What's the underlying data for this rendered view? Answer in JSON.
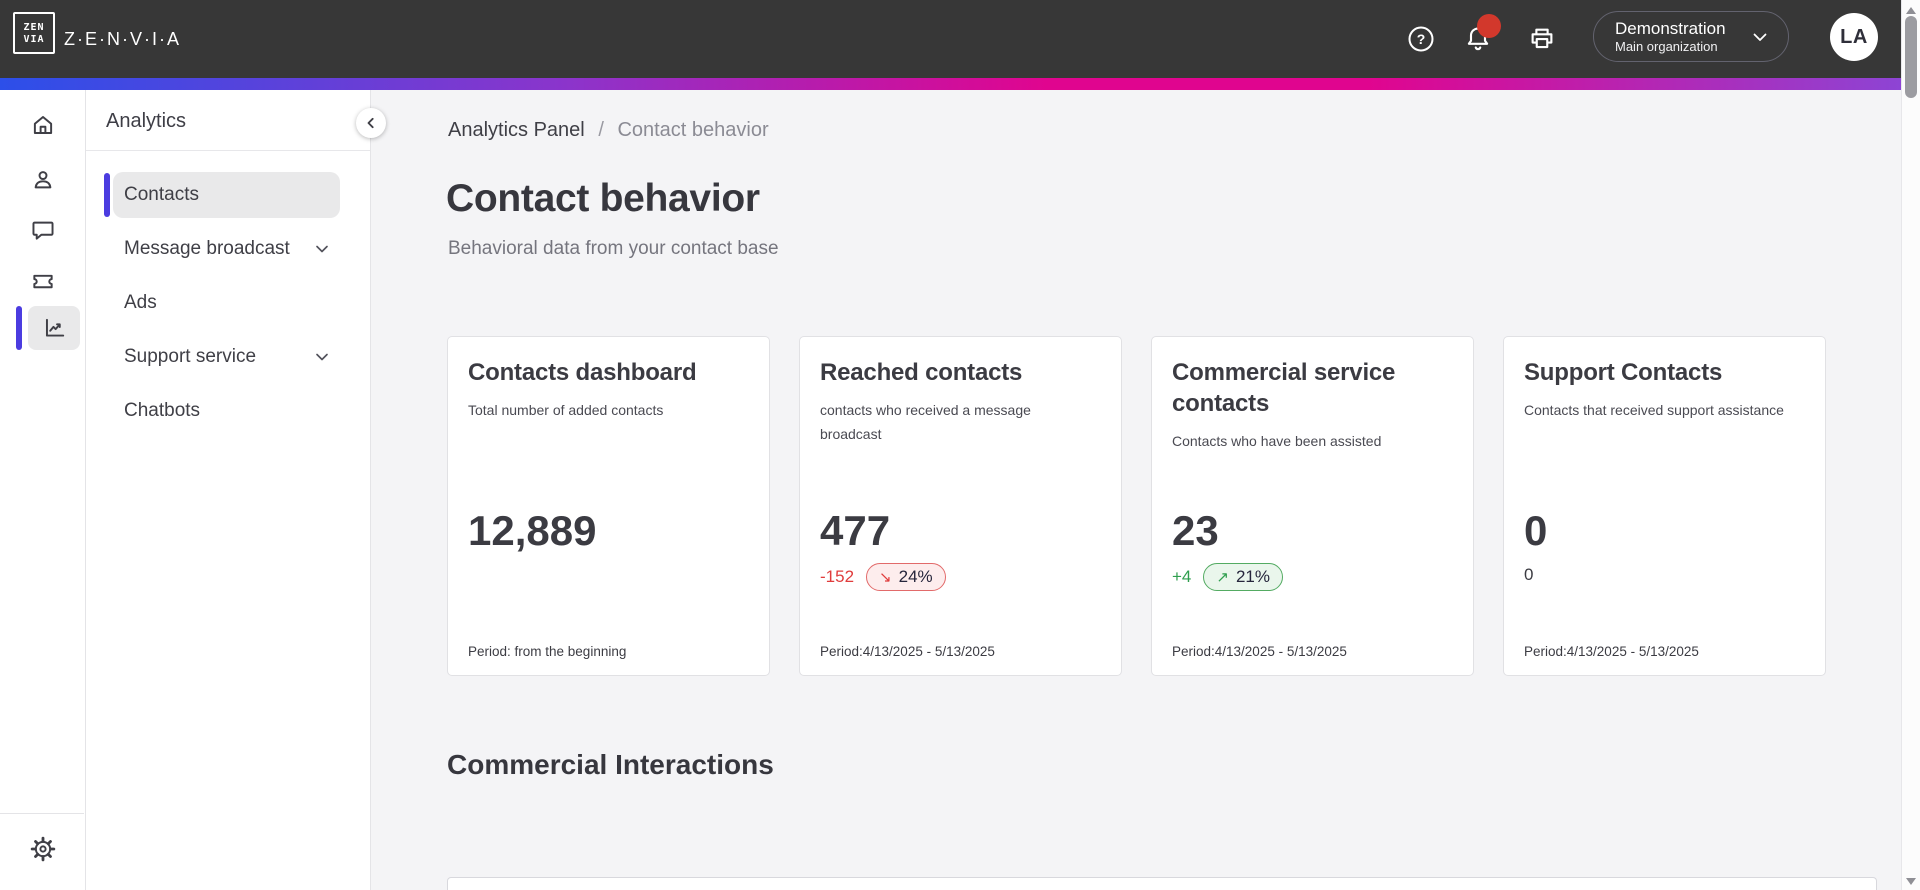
{
  "topbar": {
    "logo_text_top": "ZEN",
    "logo_text_bottom": "VIA",
    "brand": "Z·E·N·V·I·A",
    "icons": [
      "help-icon",
      "notifications-icon",
      "print-icon"
    ],
    "notification_badge": true,
    "org_switcher": {
      "name": "Demonstration",
      "description": "Main organization"
    },
    "avatar_initials": "LA"
  },
  "nav_rail": {
    "items": [
      {
        "icon": "home-icon",
        "active": false
      },
      {
        "icon": "contacts-icon",
        "active": false
      },
      {
        "icon": "conversations-icon",
        "active": false
      },
      {
        "icon": "tickets-icon",
        "active": false
      },
      {
        "icon": "analytics-icon",
        "active": true
      }
    ],
    "bottom_items": [
      {
        "icon": "settings-icon",
        "active": false
      }
    ]
  },
  "sidebar": {
    "title": "Analytics",
    "items": [
      {
        "label": "Contacts",
        "active": true,
        "expandable": false
      },
      {
        "label": "Message broadcast",
        "active": false,
        "expandable": true
      },
      {
        "label": "Ads",
        "active": false,
        "expandable": false
      },
      {
        "label": "Support service",
        "active": false,
        "expandable": true
      },
      {
        "label": "Chatbots",
        "active": false,
        "expandable": false
      }
    ]
  },
  "breadcrumb": {
    "parent": "Analytics Panel",
    "separator": "/",
    "current": "Contact behavior"
  },
  "page": {
    "title": "Contact behavior",
    "subtitle": "Behavioral data from your contact base"
  },
  "metric_cards": [
    {
      "title": "Contacts dashboard",
      "description": "Total number of added contacts",
      "value": "12,889",
      "period": "Period: from the beginning"
    },
    {
      "title": "Reached contacts",
      "description": "contacts who received a message broadcast",
      "value": "477",
      "delta": "-152",
      "trend": "down",
      "percent": "24%",
      "period": "Period:4/13/2025 - 5/13/2025"
    },
    {
      "title": "Commercial service contacts",
      "description": "Contacts who have been assisted",
      "value": "23",
      "delta": "+4",
      "trend": "up",
      "percent": "21%",
      "period": "Period:4/13/2025 - 5/13/2025"
    },
    {
      "title": "Support Contacts",
      "description": "Contacts that received support assistance",
      "value": "0",
      "secondary_value": "0",
      "period": "Period:4/13/2025 - 5/13/2025"
    }
  ],
  "section_heading": "Commercial Interactions",
  "colors": {
    "topbar_bg": "#373737",
    "accent_indigo": "#4b3ce0",
    "gradient": [
      "#2c4fe9",
      "#8c34cb",
      "#e0058f",
      "#8d44d4"
    ],
    "negative": "#e03c3c",
    "positive": "#2f9e4e",
    "notification_red": "#d2382c"
  },
  "trend_arrows": {
    "down": "↘",
    "up": "↗"
  }
}
